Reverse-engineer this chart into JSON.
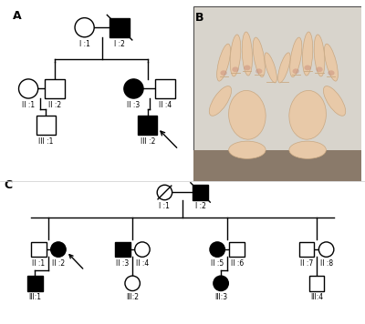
{
  "background": "#ffffff",
  "panel_A_label": "A",
  "panel_B_label": "B",
  "panel_C_label": "C",
  "line_width": 1.0,
  "font_size": 5.5,
  "label_font_size": 9,
  "label_font_weight": "bold"
}
